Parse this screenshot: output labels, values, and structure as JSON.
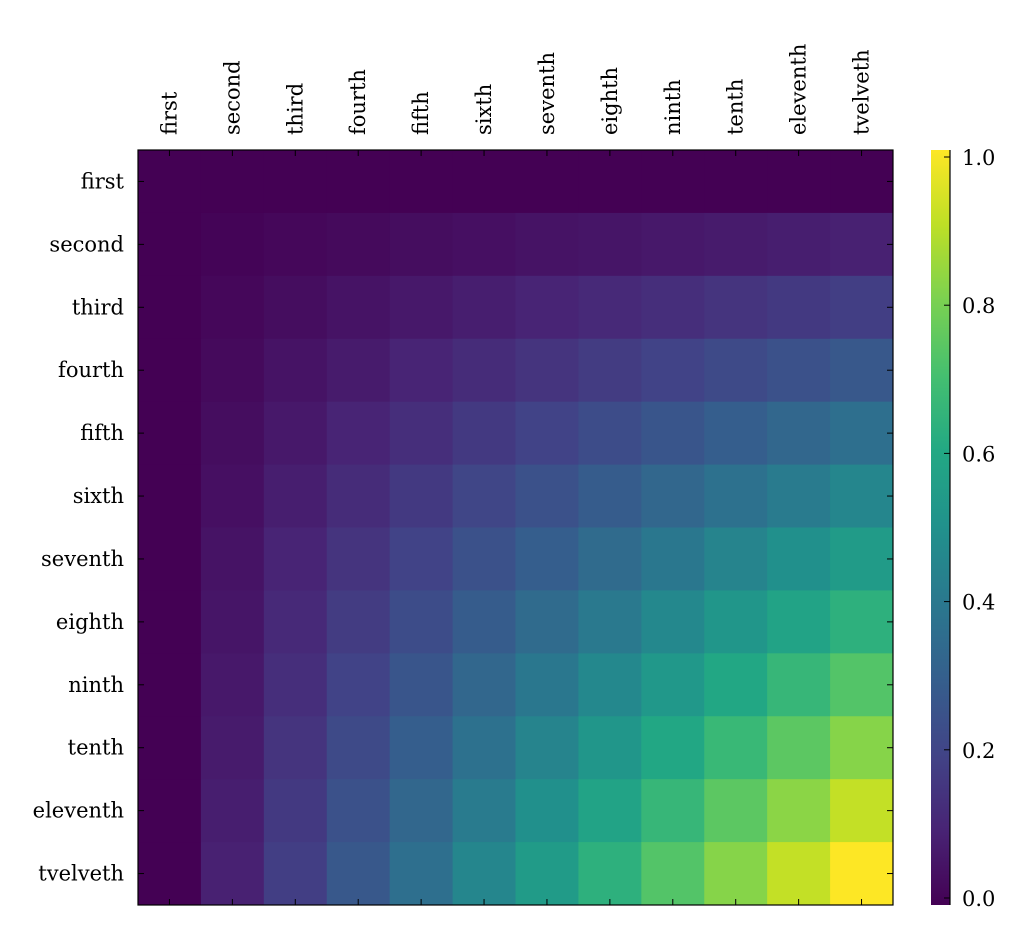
{
  "chart_data": {
    "type": "heatmap",
    "x_labels": [
      "first",
      "second",
      "third",
      "fourth",
      "fifth",
      "sixth",
      "seventh",
      "eighth",
      "ninth",
      "tenth",
      "eleventh",
      "tvelveth"
    ],
    "y_labels": [
      "first",
      "second",
      "third",
      "fourth",
      "fifth",
      "sixth",
      "seventh",
      "eighth",
      "ninth",
      "tenth",
      "eleventh",
      "tvelveth"
    ],
    "x_label_position": "top",
    "colormap": "viridis",
    "colorbar": {
      "range": [
        0.0,
        1.0
      ],
      "ticks": [
        "0.0",
        "0.2",
        "0.4",
        "0.6",
        "0.8",
        "1.0"
      ],
      "position": "right"
    },
    "values": [
      [
        0,
        0,
        0,
        0,
        0,
        0,
        0,
        0,
        0,
        0,
        0,
        0
      ],
      [
        0,
        0.008,
        0.017,
        0.025,
        0.033,
        0.041,
        0.05,
        0.058,
        0.066,
        0.074,
        0.083,
        0.091
      ],
      [
        0,
        0.017,
        0.033,
        0.05,
        0.066,
        0.083,
        0.099,
        0.116,
        0.132,
        0.149,
        0.165,
        0.182
      ],
      [
        0,
        0.025,
        0.05,
        0.074,
        0.099,
        0.124,
        0.149,
        0.174,
        0.198,
        0.223,
        0.248,
        0.273
      ],
      [
        0,
        0.033,
        0.066,
        0.099,
        0.132,
        0.165,
        0.198,
        0.231,
        0.264,
        0.298,
        0.331,
        0.364
      ],
      [
        0,
        0.041,
        0.083,
        0.124,
        0.165,
        0.207,
        0.248,
        0.289,
        0.331,
        0.372,
        0.413,
        0.455
      ],
      [
        0,
        0.05,
        0.099,
        0.149,
        0.198,
        0.248,
        0.298,
        0.347,
        0.397,
        0.446,
        0.496,
        0.545
      ],
      [
        0,
        0.058,
        0.116,
        0.174,
        0.231,
        0.289,
        0.347,
        0.405,
        0.463,
        0.521,
        0.579,
        0.636
      ],
      [
        0,
        0.066,
        0.132,
        0.198,
        0.264,
        0.331,
        0.397,
        0.463,
        0.529,
        0.595,
        0.661,
        0.727
      ],
      [
        0,
        0.074,
        0.149,
        0.223,
        0.298,
        0.372,
        0.446,
        0.521,
        0.595,
        0.669,
        0.744,
        0.818
      ],
      [
        0,
        0.083,
        0.165,
        0.248,
        0.331,
        0.413,
        0.496,
        0.579,
        0.661,
        0.744,
        0.826,
        0.909
      ],
      [
        0,
        0.091,
        0.182,
        0.273,
        0.364,
        0.455,
        0.545,
        0.636,
        0.727,
        0.818,
        0.909,
        1.0
      ]
    ]
  }
}
